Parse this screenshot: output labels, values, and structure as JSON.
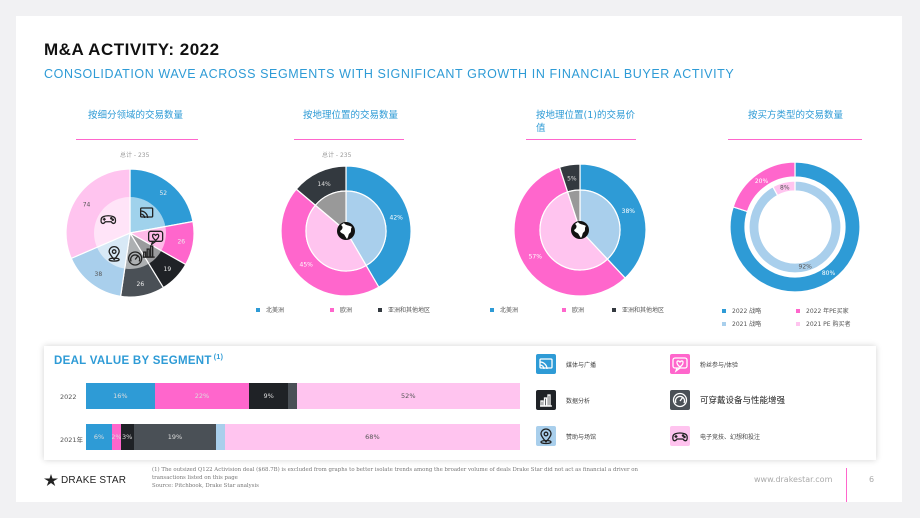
{
  "header": {
    "title": "M&A ACTIVITY: 2022",
    "subtitle": "CONSOLIDATION WAVE ACROSS SEGMENTS WITH SIGNIFICANT GROWTH IN FINANCIAL BUYER ACTIVITY"
  },
  "colors": {
    "blue": "#2e9bd6",
    "light_blue": "#a9cfec",
    "pink": "#ff66cc",
    "light_pink": "#ffc4ef",
    "dark": "#33393f",
    "gray": "#999999"
  },
  "chart_data": [
    {
      "type": "pie",
      "title": "按细分领域的交易数量",
      "total_label": "总计 - 235",
      "slices": [
        {
          "value": 52,
          "label": "52",
          "color": "#2e9bd6",
          "icon": "cast-icon"
        },
        {
          "value": 26,
          "label": "26",
          "color": "#ff66cc",
          "icon": "heart-chat-icon"
        },
        {
          "value": 19,
          "label": "19",
          "color": "#1f2226",
          "icon": "bar-chart-icon"
        },
        {
          "value": 26,
          "label": "26",
          "color": "#4a5056",
          "icon": "gauge-icon"
        },
        {
          "value": 38,
          "label": "38",
          "color": "#a9cfec",
          "icon": "location-pin-icon"
        },
        {
          "value": 74,
          "label": "74",
          "color": "#ffc4ef",
          "icon": "gamepad-icon"
        }
      ]
    },
    {
      "type": "pie",
      "title": "按地理位置的交易数量",
      "total_label": "总计 - 235",
      "outer": [
        {
          "value": 42,
          "label": "42%",
          "color": "#2e9bd6"
        },
        {
          "value": 45,
          "label": "45%",
          "color": "#ff66cc"
        },
        {
          "value": 14,
          "label": "14%",
          "color": "#33393f"
        }
      ],
      "inner": [
        {
          "value": 42,
          "color": "#a9cfec"
        },
        {
          "value": 45,
          "color": "#ffc4ef"
        },
        {
          "value": 14,
          "color": "#999999"
        }
      ],
      "center_icon": "globe-icon",
      "legend": [
        {
          "label": "北美洲",
          "color": "#2e9bd6"
        },
        {
          "label": "欧洲",
          "color": "#ff66cc"
        },
        {
          "label": "亚洲和其他地区",
          "color": "#33393f"
        }
      ]
    },
    {
      "type": "pie",
      "title": "按地理位置(1)的交易价值",
      "outer": [
        {
          "value": 38,
          "label": "38%",
          "color": "#2e9bd6"
        },
        {
          "value": 57,
          "label": "57%",
          "color": "#ff66cc"
        },
        {
          "value": 5,
          "label": "5%",
          "color": "#33393f"
        }
      ],
      "inner": [
        {
          "value": 38,
          "color": "#a9cfec"
        },
        {
          "value": 57,
          "color": "#ffc4ef"
        },
        {
          "value": 5,
          "color": "#999999"
        }
      ],
      "center_icon": "globe-icon",
      "legend": [
        {
          "label": "北美洲",
          "color": "#2e9bd6"
        },
        {
          "label": "欧洲",
          "color": "#ff66cc"
        },
        {
          "label": "亚洲和其他地区",
          "color": "#33393f"
        }
      ]
    },
    {
      "type": "pie",
      "title": "按买方类型的交易数量",
      "outer": [
        {
          "value": 80,
          "label": "80%",
          "color": "#2e9bd6"
        },
        {
          "value": 20,
          "label": "20%",
          "color": "#ff66cc"
        }
      ],
      "inner": [
        {
          "value": 92,
          "label": "92%",
          "color": "#a9cfec"
        },
        {
          "value": 8,
          "label": "8%",
          "color": "#ffc4ef"
        }
      ],
      "legend": [
        {
          "label": "2022 战略",
          "color": "#2e9bd6"
        },
        {
          "label": "2022 年PE买家",
          "color": "#ff66cc"
        },
        {
          "label": "2021 战略",
          "color": "#a9cfec"
        },
        {
          "label": "2021 PE 购买者",
          "color": "#ffc4ef"
        }
      ]
    },
    {
      "type": "bar",
      "title": "DEAL VALUE BY SEGMENT",
      "title_note": "(1)",
      "stacked": true,
      "orientation": "horizontal",
      "categories": [
        "2022",
        "2021年"
      ],
      "series": [
        {
          "values": [
            16,
            6
          ],
          "labels": [
            "16%",
            "6%"
          ],
          "color": "#2e9bd6"
        },
        {
          "values": [
            22,
            2
          ],
          "labels": [
            "22%",
            "2%"
          ],
          "color": "#ff66cc"
        },
        {
          "values": [
            9,
            3
          ],
          "labels": [
            "9%",
            "3%"
          ],
          "color": "#1f2226"
        },
        {
          "values": [
            2,
            19
          ],
          "labels": [
            "",
            "19%"
          ],
          "color": "#4a5056"
        },
        {
          "values": [
            0,
            2
          ],
          "labels": [
            "",
            ""
          ],
          "color": "#a9cfec"
        },
        {
          "values": [
            52,
            68
          ],
          "labels": [
            "52%",
            "68%"
          ],
          "color": "#ffc4ef"
        }
      ]
    }
  ],
  "segment_legend": [
    {
      "label": "媒体与广播",
      "icon": "cast-icon",
      "color": "#2e9bd6",
      "big": false
    },
    {
      "label": "粉丝参与/体验",
      "icon": "heart-chat-icon",
      "color": "#ff66cc",
      "big": false
    },
    {
      "label": "数据分析",
      "icon": "bar-chart-icon",
      "color": "#1f2226",
      "big": false
    },
    {
      "label": "可穿戴设备与性能增强",
      "icon": "gauge-icon",
      "color": "#4a5056",
      "big": true
    },
    {
      "label": "赞助与场馆",
      "icon": "location-pin-icon",
      "color": "#a9cfec",
      "big": false
    },
    {
      "label": "电子竞技、幻想和投注",
      "icon": "gamepad-icon",
      "color": "#ffc4ef",
      "big": false
    }
  ],
  "footer": {
    "footnote_1": "(1) The outsized Q122 Activision deal ($68.7B) is excluded from graphs to better isolate trends among the broader volume of deals Drake Star did not act as financial a driver on transactions listed on this page",
    "source": "Source: Pitchbook, Drake Star analysis",
    "logo_text": "DRAKE STAR",
    "website": "www.drakestar.com",
    "page_number": "6"
  }
}
